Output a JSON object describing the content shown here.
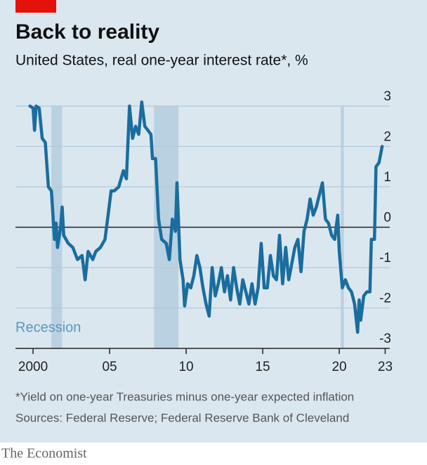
{
  "chart_data": {
    "type": "line",
    "title": "Back to reality",
    "subtitle": "United States, real one-year interest rate*, %",
    "note": "*Yield on one-year Treasuries minus one-year expected inflation",
    "source": "Sources: Federal Reserve; Federal Reserve Bank of Cleveland",
    "brand": "The Economist",
    "annotation": "Recession",
    "recessions": [
      [
        2001.2,
        2001.9
      ],
      [
        2007.9,
        2009.5
      ],
      [
        2020.1,
        2020.3
      ]
    ],
    "color": "#1a6d9e",
    "xlim": [
      1998.85,
      2023.3
    ],
    "xticks": [
      2000,
      {
        "value": 2005,
        "label": "05"
      },
      {
        "value": 2010,
        "label": "10"
      },
      {
        "value": 2015,
        "label": "15"
      },
      {
        "value": 2020,
        "label": "20"
      },
      {
        "value": 2023,
        "label": "23"
      }
    ],
    "ylim": [
      -3,
      3
    ],
    "yticks": [
      -3,
      -2,
      -1,
      0,
      1,
      2,
      3
    ],
    "grid": true,
    "x": [
      1999.8,
      2000.0,
      2000.1,
      2000.2,
      2000.4,
      2000.6,
      2000.8,
      2001.0,
      2001.2,
      2001.4,
      2001.5,
      2001.6,
      2001.8,
      2001.9,
      2002.0,
      2002.3,
      2002.6,
      2002.9,
      2003.2,
      2003.4,
      2003.6,
      2003.9,
      2004.1,
      2004.4,
      2004.7,
      2004.9,
      2005.1,
      2005.3,
      2005.6,
      2005.9,
      2006.1,
      2006.3,
      2006.5,
      2006.7,
      2006.9,
      2007.1,
      2007.3,
      2007.5,
      2007.7,
      2007.8,
      2008.0,
      2008.2,
      2008.4,
      2008.7,
      2008.9,
      2009.1,
      2009.3,
      2009.4,
      2009.6,
      2009.8,
      2009.9,
      2010.1,
      2010.3,
      2010.5,
      2010.7,
      2010.9,
      2011.1,
      2011.3,
      2011.5,
      2011.7,
      2011.9,
      2012.1,
      2012.3,
      2012.5,
      2012.7,
      2012.9,
      2013.1,
      2013.3,
      2013.5,
      2013.7,
      2013.9,
      2014.1,
      2014.3,
      2014.5,
      2014.7,
      2014.9,
      2015.1,
      2015.3,
      2015.5,
      2015.7,
      2015.9,
      2016.1,
      2016.3,
      2016.5,
      2016.7,
      2016.9,
      2017.1,
      2017.3,
      2017.5,
      2017.7,
      2017.9,
      2018.1,
      2018.3,
      2018.5,
      2018.7,
      2018.9,
      2019.1,
      2019.3,
      2019.5,
      2019.7,
      2019.9,
      2020.0,
      2020.2,
      2020.4,
      2020.6,
      2020.8,
      2021.0,
      2021.2,
      2021.3,
      2021.4,
      2021.6,
      2021.8,
      2022.0,
      2022.1,
      2022.3,
      2022.4,
      2022.6,
      2022.8
    ],
    "values": [
      3.0,
      2.95,
      2.4,
      3.0,
      2.95,
      2.2,
      2.1,
      1.0,
      0.9,
      -0.3,
      0.1,
      -0.5,
      0.0,
      0.5,
      -0.2,
      -0.4,
      -0.5,
      -0.8,
      -0.7,
      -1.3,
      -0.6,
      -0.8,
      -0.6,
      -0.5,
      -0.3,
      0.3,
      0.9,
      0.9,
      1.0,
      1.4,
      1.2,
      3.0,
      2.2,
      2.5,
      2.3,
      3.1,
      2.5,
      2.4,
      2.3,
      1.7,
      1.7,
      0.2,
      -0.3,
      -0.4,
      -0.8,
      0.2,
      -0.1,
      1.1,
      -0.8,
      -1.3,
      -1.95,
      -1.4,
      -1.5,
      -1.2,
      -0.7,
      -1.0,
      -1.5,
      -1.9,
      -2.2,
      -1.0,
      -1.7,
      -1.4,
      -1.0,
      -1.6,
      -1.2,
      -1.8,
      -1.0,
      -1.5,
      -1.9,
      -1.3,
      -1.6,
      -1.9,
      -1.4,
      -1.9,
      -1.5,
      -0.4,
      -1.5,
      -1.5,
      -0.7,
      -1.2,
      -1.3,
      -0.2,
      -1.4,
      -0.5,
      -1.3,
      -0.9,
      -0.5,
      -0.3,
      -1.1,
      -0.1,
      0.2,
      0.7,
      0.3,
      0.5,
      0.8,
      1.1,
      0.2,
      0.1,
      -0.2,
      -0.3,
      0.3,
      -0.6,
      -1.5,
      -1.3,
      -1.5,
      -1.6,
      -1.9,
      -2.6,
      -1.8,
      -2.3,
      -1.7,
      -1.6,
      -1.6,
      -0.3,
      -0.3,
      1.5,
      1.6,
      2.0
    ]
  }
}
